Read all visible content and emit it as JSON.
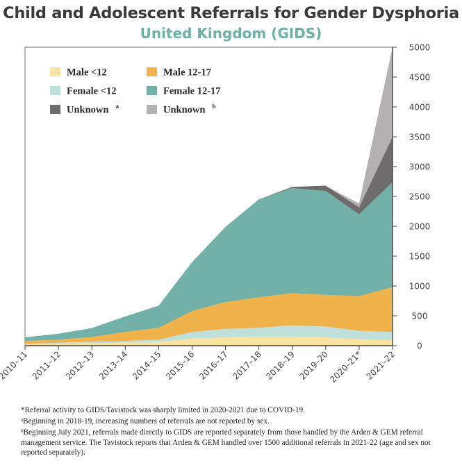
{
  "chart_data": {
    "type": "area",
    "title": "Child and Adolescent Referrals for Gender Dysphoria",
    "subtitle": "United Kingdom (GIDS)",
    "categories": [
      "2010–11",
      "2011–12",
      "2012–13",
      "2013–14",
      "2014–15",
      "2015–16",
      "2016–17",
      "2017–18",
      "2018–19",
      "2019–20",
      "2020–21*",
      "2021–22"
    ],
    "ylim": [
      0,
      5000
    ],
    "yticks": [
      0,
      500,
      1000,
      1500,
      2000,
      2500,
      3000,
      3500,
      4000,
      4500,
      5000
    ],
    "stacked": true,
    "series": [
      {
        "name": "Male <12",
        "color": "#f8e3a1",
        "values": [
          20,
          30,
          40,
          50,
          60,
          120,
          140,
          150,
          150,
          140,
          110,
          90
        ]
      },
      {
        "name": "Female <12",
        "color": "#bfe0da",
        "values": [
          10,
          20,
          25,
          30,
          40,
          110,
          140,
          150,
          190,
          180,
          140,
          140
        ]
      },
      {
        "name": "Male 12-17",
        "color": "#f0b24a",
        "values": [
          50,
          50,
          80,
          150,
          200,
          350,
          450,
          510,
          540,
          530,
          580,
          750
        ]
      },
      {
        "name": "Female 12-17",
        "color": "#72b1a7",
        "values": [
          60,
          100,
          150,
          260,
          370,
          820,
          1260,
          1640,
          1760,
          1740,
          1370,
          1760
        ]
      },
      {
        "name": "Unknown",
        "sup": "a",
        "color": "#6e6c6d",
        "values": [
          0,
          0,
          0,
          0,
          0,
          0,
          0,
          0,
          20,
          90,
          120,
          760
        ]
      },
      {
        "name": "Unknown",
        "sup": "b",
        "color": "#b3b1b2",
        "values": [
          0,
          0,
          0,
          0,
          0,
          0,
          0,
          0,
          0,
          0,
          60,
          1500
        ]
      }
    ]
  },
  "legend": [
    {
      "label": "Male <12",
      "sup": "",
      "color": "#f8e3a1"
    },
    {
      "label": "Male 12-17",
      "sup": "",
      "color": "#f0b24a"
    },
    {
      "label": "Female <12",
      "sup": "",
      "color": "#bfe0da"
    },
    {
      "label": "Female 12-17",
      "sup": "",
      "color": "#72b1a7"
    },
    {
      "label": "Unknown",
      "sup": "a",
      "color": "#6e6c6d"
    },
    {
      "label": "Unknown",
      "sup": "b",
      "color": "#b3b1b2"
    }
  ],
  "notes": {
    "covid": "*Referral activity to GIDS/Tavistock was sharply limited in 2020-2021 due to COVID-19.",
    "a_mark": "a",
    "a_text": "Beginning in 2018-19, increasing numbers of referrals are not reported by sex.",
    "b_mark": "b",
    "b_text": "Beginning July 2021, referrals made directly to GIDS are reported separately from those handled by the Arden & GEM referral management service. The Tavistock reports that Arden & GEM handled over 1500 additional referrals in 2021-22 (age and sex not reported separately)."
  }
}
